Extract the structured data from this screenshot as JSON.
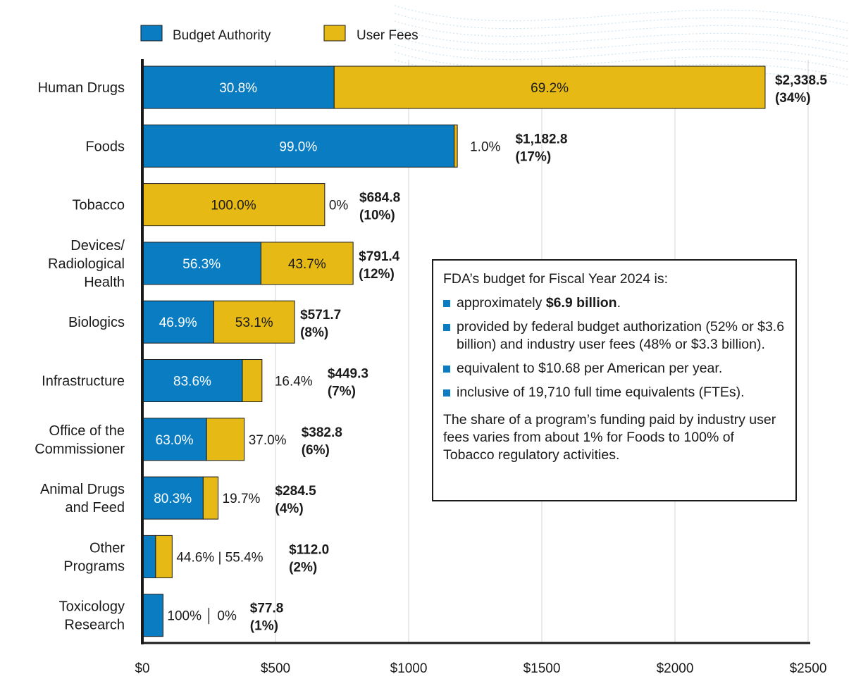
{
  "colors": {
    "budget_authority": "#0a7cc2",
    "user_fees": "#e6b914",
    "grid": "#d8dde3",
    "axis": "#1a1a1a",
    "decoration": "#cfe3ef"
  },
  "legend": [
    "Budget Authority",
    "User Fees"
  ],
  "chart_data": {
    "type": "bar",
    "orientation": "horizontal",
    "stacked": true,
    "units": "$ millions",
    "xlim": [
      0,
      2500
    ],
    "x_ticks": [
      "$0",
      "$500",
      "$1000",
      "$1500",
      "$2000",
      "$2500"
    ],
    "grid": true,
    "legend_position": "top-left",
    "categories": [
      [
        "Human Drugs"
      ],
      [
        "Foods"
      ],
      [
        "Tobacco"
      ],
      [
        "Devices/",
        "Radiological",
        "Health"
      ],
      [
        "Biologics"
      ],
      [
        "Infrastructure"
      ],
      [
        "Office of the",
        "Commissioner"
      ],
      [
        "Animal Drugs",
        "and Feed"
      ],
      [
        "Other",
        "Programs"
      ],
      [
        "Toxicology",
        "Research"
      ]
    ],
    "totals": [
      2338.5,
      1182.8,
      684.8,
      791.4,
      571.7,
      449.3,
      382.8,
      284.5,
      112.0,
      77.8
    ],
    "ba_share": [
      30.8,
      99.0,
      0,
      56.3,
      46.9,
      83.6,
      63.0,
      80.3,
      44.6,
      100
    ],
    "uf_share": [
      69.2,
      1.0,
      100.0,
      43.7,
      53.1,
      16.4,
      37.0,
      19.7,
      55.4,
      0
    ],
    "total_labels": [
      "$2,338.5",
      "$1,182.8",
      "$684.8",
      "$791.4",
      "$571.7",
      "$449.3",
      "$382.8",
      "$284.5",
      "$112.0",
      "$77.8"
    ],
    "share_of_total_labels": [
      "(34%)",
      "(17%)",
      "(10%)",
      "(12%)",
      "(8%)",
      "(7%)",
      "(6%)",
      "(4%)",
      "(2%)",
      "(1%)"
    ],
    "ba_labels": [
      "30.8%",
      "99.0%",
      "",
      "56.3%",
      "46.9%",
      "83.6%",
      "63.0%",
      "80.3%",
      "",
      ""
    ],
    "uf_labels": [
      "69.2%",
      "",
      "100.0%",
      "43.7%",
      "53.1%",
      "",
      "",
      "",
      "",
      ""
    ],
    "outside_labels": [
      "",
      "1.0%",
      "0%",
      "",
      "",
      "16.4%",
      "37.0%",
      "19.7%",
      "44.6% | 55.4%",
      "100% │ 0%"
    ]
  },
  "info_box": {
    "heading": "FDA’s budget for Fiscal Year 2024 is:",
    "bullet1_prefix": "approximately ",
    "bullet1_bold": "$6.9 billion",
    "bullet1_suffix": ".",
    "bullet2": "provided by federal budget authorization (52% or $3.6 billion) and industry user fees (48% or $3.3 billion).",
    "bullet3": "equivalent to $10.68 per American per year.",
    "bullet4": "inclusive of 19,710 full time equivalents (FTEs).",
    "closing": "The share of a program’s funding paid by industry user fees varies from about 1% for Foods to 100% of Tobacco regulatory activities."
  }
}
